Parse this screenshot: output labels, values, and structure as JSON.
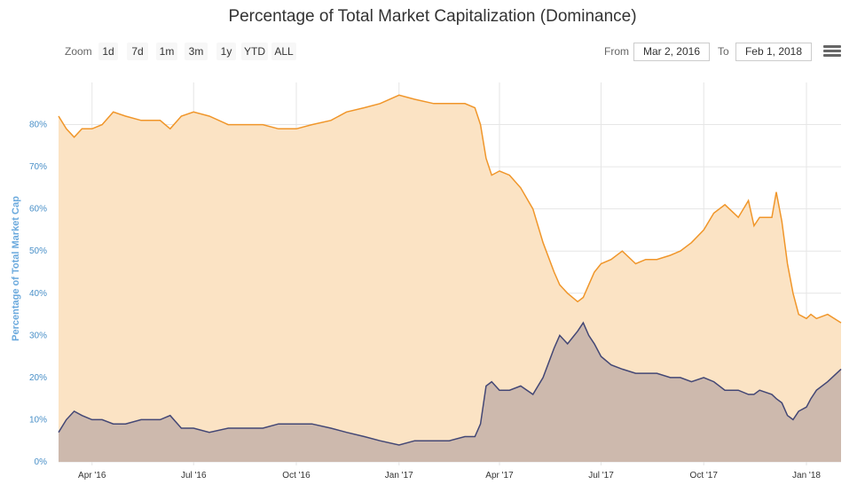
{
  "chart": {
    "title": "Percentage of Total Market Capitalization (Dominance)"
  },
  "zoom": {
    "label": "Zoom",
    "buttons": [
      "1d",
      "7d",
      "1m",
      "3m",
      "1y",
      "YTD",
      "ALL"
    ]
  },
  "range": {
    "from_label": "From",
    "from_value": "Mar 2, 2016",
    "to_label": "To",
    "to_value": "Feb 1, 2018"
  },
  "menu": {
    "icon": "hamburger-menu-icon"
  },
  "colors": {
    "series1_line": "#f0962a",
    "series1_fill": "#fbe3c4",
    "series2_line": "#434775",
    "series2_fill": "#cdb9ad",
    "grid": "#e6e6e6"
  },
  "chart_data": {
    "type": "area",
    "title": "Percentage of Total Market Capitalization (Dominance)",
    "xlabel": "",
    "ylabel": "Percentage of Total Market Cap",
    "ylim": [
      0,
      90
    ],
    "y_ticks": [
      "0%",
      "10%",
      "20%",
      "30%",
      "40%",
      "50%",
      "60%",
      "70%",
      "80%"
    ],
    "x_ticks": [
      "Apr '16",
      "Jul '16",
      "Oct '16",
      "Jan '17",
      "Apr '17",
      "Jul '17",
      "Oct '17",
      "Jan '18"
    ],
    "x_tick_dates": [
      "2016-04-01",
      "2016-07-01",
      "2016-10-01",
      "2017-01-01",
      "2017-04-01",
      "2017-07-01",
      "2017-10-01",
      "2018-01-01"
    ],
    "x_range": [
      "2016-03-02",
      "2018-02-01"
    ],
    "grid": true,
    "legend": "none",
    "series": [
      {
        "x": [
          "2016-03-02",
          "2016-03-09",
          "2016-03-16",
          "2016-03-23",
          "2016-04-01",
          "2016-04-10",
          "2016-04-20",
          "2016-05-01",
          "2016-05-15",
          "2016-06-01",
          "2016-06-10",
          "2016-06-20",
          "2016-07-01",
          "2016-07-15",
          "2016-08-01",
          "2016-08-15",
          "2016-09-01",
          "2016-09-15",
          "2016-10-01",
          "2016-10-15",
          "2016-11-01",
          "2016-11-15",
          "2016-12-01",
          "2016-12-15",
          "2017-01-01",
          "2017-01-15",
          "2017-02-01",
          "2017-02-15",
          "2017-03-01",
          "2017-03-10",
          "2017-03-15",
          "2017-03-20",
          "2017-03-25",
          "2017-04-01",
          "2017-04-10",
          "2017-04-20",
          "2017-05-01",
          "2017-05-10",
          "2017-05-20",
          "2017-05-25",
          "2017-06-01",
          "2017-06-10",
          "2017-06-15",
          "2017-06-20",
          "2017-06-25",
          "2017-07-01",
          "2017-07-10",
          "2017-07-20",
          "2017-08-01",
          "2017-08-10",
          "2017-08-20",
          "2017-09-01",
          "2017-09-10",
          "2017-09-20",
          "2017-10-01",
          "2017-10-10",
          "2017-10-20",
          "2017-11-01",
          "2017-11-10",
          "2017-11-15",
          "2017-11-20",
          "2017-12-01",
          "2017-12-05",
          "2017-12-10",
          "2017-12-15",
          "2017-12-20",
          "2017-12-25",
          "2018-01-01",
          "2018-01-05",
          "2018-01-10",
          "2018-01-20",
          "2018-02-01"
        ],
        "values": [
          82,
          79,
          77,
          79,
          79,
          80,
          83,
          82,
          81,
          81,
          79,
          82,
          83,
          82,
          80,
          80,
          80,
          79,
          79,
          80,
          81,
          83,
          84,
          85,
          87,
          86,
          85,
          85,
          85,
          84,
          80,
          72,
          68,
          69,
          68,
          65,
          60,
          52,
          45,
          42,
          40,
          38,
          39,
          42,
          45,
          47,
          48,
          50,
          47,
          48,
          48,
          49,
          50,
          52,
          55,
          59,
          61,
          58,
          62,
          56,
          58,
          58,
          64,
          57,
          47,
          40,
          35,
          34,
          35,
          34,
          35,
          33
        ]
      },
      {
        "x": [
          "2016-03-02",
          "2016-03-09",
          "2016-03-16",
          "2016-03-23",
          "2016-04-01",
          "2016-04-10",
          "2016-04-20",
          "2016-05-01",
          "2016-05-15",
          "2016-06-01",
          "2016-06-10",
          "2016-06-20",
          "2016-07-01",
          "2016-07-15",
          "2016-08-01",
          "2016-08-15",
          "2016-09-01",
          "2016-09-15",
          "2016-10-01",
          "2016-10-15",
          "2016-11-01",
          "2016-11-15",
          "2016-12-01",
          "2016-12-15",
          "2017-01-01",
          "2017-01-15",
          "2017-02-01",
          "2017-02-15",
          "2017-03-01",
          "2017-03-10",
          "2017-03-15",
          "2017-03-20",
          "2017-03-25",
          "2017-04-01",
          "2017-04-10",
          "2017-04-20",
          "2017-05-01",
          "2017-05-10",
          "2017-05-20",
          "2017-05-25",
          "2017-06-01",
          "2017-06-10",
          "2017-06-15",
          "2017-06-20",
          "2017-06-25",
          "2017-07-01",
          "2017-07-10",
          "2017-07-20",
          "2017-08-01",
          "2017-08-10",
          "2017-08-20",
          "2017-09-01",
          "2017-09-10",
          "2017-09-20",
          "2017-10-01",
          "2017-10-10",
          "2017-10-20",
          "2017-11-01",
          "2017-11-10",
          "2017-11-15",
          "2017-11-20",
          "2017-12-01",
          "2017-12-05",
          "2017-12-10",
          "2017-12-15",
          "2017-12-20",
          "2017-12-25",
          "2018-01-01",
          "2018-01-05",
          "2018-01-10",
          "2018-01-20",
          "2018-02-01"
        ],
        "values": [
          7,
          10,
          12,
          11,
          10,
          10,
          9,
          9,
          10,
          10,
          11,
          8,
          8,
          7,
          8,
          8,
          8,
          9,
          9,
          9,
          8,
          7,
          6,
          5,
          4,
          5,
          5,
          5,
          6,
          6,
          9,
          18,
          19,
          17,
          17,
          18,
          16,
          20,
          27,
          30,
          28,
          31,
          33,
          30,
          28,
          25,
          23,
          22,
          21,
          21,
          21,
          20,
          20,
          19,
          20,
          19,
          17,
          17,
          16,
          16,
          17,
          16,
          15,
          14,
          11,
          10,
          12,
          13,
          15,
          17,
          19,
          22
        ]
      }
    ]
  }
}
